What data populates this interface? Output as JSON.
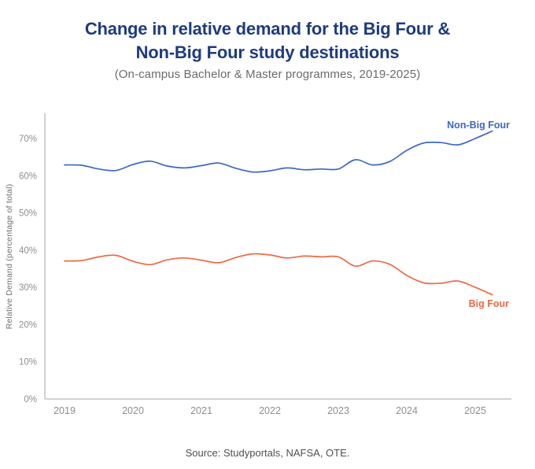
{
  "header": {
    "title_line1": "Change in relative demand for the Big Four &",
    "title_line2": "Non-Big Four study destinations",
    "subtitle": "(On-campus Bachelor & Master programmes, 2019-2025)"
  },
  "footer": {
    "source": "Source: Studyportals, NAFSA, OTE."
  },
  "colors": {
    "title": "#1e3b7e",
    "subtitle": "#6b6b6b",
    "source": "#4f4f4f",
    "axis_line": "#cbcbcb",
    "tick_label": "#8e8e8e",
    "axis_label": "#707070",
    "non_big_four": "#3a68c6",
    "big_four": "#ec6a45"
  },
  "chart_data": {
    "type": "line",
    "title": "Change in relative demand for the Big Four & Non-Big Four study destinations",
    "subtitle": "(On-campus Bachelor & Master programmes, 2019-2025)",
    "ylabel": "Relative Demand (percentage of total)",
    "xlabel": "",
    "grid": false,
    "legend_position": "inline-end-of-line-labels",
    "ylim": [
      0,
      76
    ],
    "x_tick_labels": [
      "2019",
      "2020",
      "2021",
      "2022",
      "2023",
      "2024",
      "2025"
    ],
    "x_tick_values": [
      2019,
      2020,
      2021,
      2022,
      2023,
      2024,
      2025
    ],
    "y_tick_labels": [
      "0%",
      "10%",
      "20%",
      "30%",
      "40%",
      "50%",
      "60%",
      "70%"
    ],
    "y_tick_values": [
      0,
      10,
      20,
      30,
      40,
      50,
      60,
      70
    ],
    "x": [
      2019.0,
      2019.25,
      2019.5,
      2019.75,
      2020.0,
      2020.25,
      2020.5,
      2020.75,
      2021.0,
      2021.25,
      2021.5,
      2021.75,
      2022.0,
      2022.25,
      2022.5,
      2022.75,
      2023.0,
      2023.25,
      2023.5,
      2023.75,
      2024.0,
      2024.25,
      2024.5,
      2024.75,
      2025.0,
      2025.25
    ],
    "series": [
      {
        "name": "Non-Big Four",
        "color_key": "non_big_four",
        "values": [
          62.9,
          62.8,
          61.8,
          61.4,
          63.0,
          63.9,
          62.6,
          62.1,
          62.7,
          63.4,
          62.0,
          61.0,
          61.3,
          62.1,
          61.6,
          61.8,
          61.8,
          64.3,
          62.9,
          63.8,
          66.8,
          68.8,
          68.9,
          68.3,
          70.0,
          72.0
        ]
      },
      {
        "name": "Big Four",
        "color_key": "big_four",
        "values": [
          37.1,
          37.2,
          38.2,
          38.6,
          37.0,
          36.1,
          37.4,
          37.9,
          37.3,
          36.6,
          38.0,
          39.0,
          38.7,
          37.9,
          38.4,
          38.2,
          38.2,
          35.7,
          37.1,
          36.2,
          33.2,
          31.2,
          31.1,
          31.7,
          30.0,
          28.0
        ]
      }
    ]
  }
}
